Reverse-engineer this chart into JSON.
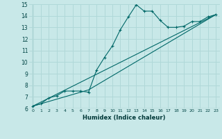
{
  "xlabel": "Humidex (Indice chaleur)",
  "bg_color": "#c8e8e8",
  "grid_color": "#b0d8d8",
  "line_color": "#006868",
  "xlim": [
    -0.5,
    23.5
  ],
  "ylim": [
    6,
    15
  ],
  "xticks": [
    0,
    1,
    2,
    3,
    4,
    5,
    6,
    7,
    8,
    9,
    10,
    11,
    12,
    13,
    14,
    15,
    16,
    17,
    18,
    19,
    20,
    21,
    22,
    23
  ],
  "yticks": [
    6,
    7,
    8,
    9,
    10,
    11,
    12,
    13,
    14,
    15
  ],
  "line1_x": [
    0,
    1,
    2,
    3,
    4,
    5,
    6,
    7,
    8,
    9,
    10,
    11,
    12,
    13,
    14,
    15,
    16,
    17,
    18,
    19,
    20,
    21,
    22,
    23
  ],
  "line1_y": [
    6.2,
    6.4,
    6.9,
    7.1,
    7.5,
    7.5,
    7.5,
    7.4,
    9.3,
    10.4,
    11.4,
    12.8,
    13.9,
    14.95,
    14.4,
    14.4,
    13.6,
    13.0,
    13.0,
    13.1,
    13.5,
    13.5,
    13.9,
    14.1
  ],
  "line2_x": [
    0,
    23
  ],
  "line2_y": [
    6.2,
    14.1
  ],
  "line3_x": [
    0,
    7,
    23
  ],
  "line3_y": [
    6.2,
    7.6,
    14.1
  ]
}
